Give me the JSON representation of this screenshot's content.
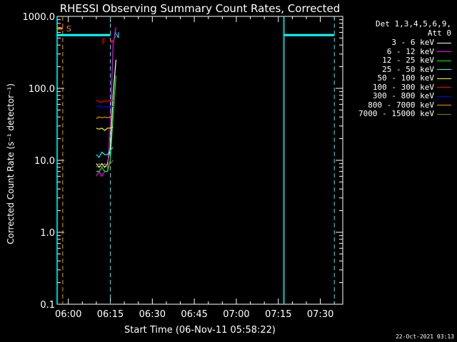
{
  "chart_data": {
    "type": "line",
    "title": "RHESSI Observing Summary Count Rates, Corrected",
    "xlabel": "Start Time (06-Nov-11 05:58:22)",
    "ylabel": "Corrected Count Rate (s⁻¹ detector⁻¹)",
    "yscale": "log",
    "ylim": [
      0.1,
      1000
    ],
    "xlim": [
      "05:56",
      "07:38"
    ],
    "x_ticks": [
      "06:00",
      "06:15",
      "06:30",
      "06:45",
      "07:00",
      "07:15",
      "07:30"
    ],
    "y_ticks": [
      "0.1",
      "1.0",
      "10.0",
      "100.0",
      "1000.0"
    ],
    "background": "#000000",
    "legend": {
      "header": "Det 1,3,4,5,6,9,\nAtt 0",
      "placement": "right"
    },
    "series": [
      {
        "name": "3 - 6 keV",
        "color": "#ffffff",
        "x": [
          "06:10",
          "06:11",
          "06:12",
          "06:13",
          "06:14",
          "06:15",
          "06:16",
          "06:17"
        ],
        "y": [
          9,
          8,
          9,
          8,
          9,
          15,
          80,
          250
        ]
      },
      {
        "name": "6 - 12 keV",
        "color": "#ff00ff",
        "x": [
          "06:10",
          "06:11",
          "06:12",
          "06:13",
          "06:14",
          "06:15",
          "06:16",
          "06:17"
        ],
        "y": [
          6,
          7,
          6,
          7,
          7,
          30,
          400,
          700
        ]
      },
      {
        "name": "12 - 25 keV",
        "color": "#00ff00",
        "x": [
          "06:10",
          "06:11",
          "06:12",
          "06:13",
          "06:14",
          "06:15",
          "06:16",
          "06:17"
        ],
        "y": [
          7,
          7,
          8,
          7,
          7,
          10,
          40,
          150
        ]
      },
      {
        "name": "25 - 50 keV",
        "color": "#00ffff",
        "x": [
          "06:10",
          "06:11",
          "06:12",
          "06:13",
          "06:14",
          "06:15",
          "06:16"
        ],
        "y": [
          12,
          11,
          13,
          12,
          12,
          14,
          15
        ]
      },
      {
        "name": "50 - 100 keV",
        "color": "#ffff00",
        "x": [
          "06:10",
          "06:11",
          "06:12",
          "06:13",
          "06:14",
          "06:15",
          "06:16"
        ],
        "y": [
          28,
          27,
          28,
          26,
          28,
          28,
          29
        ]
      },
      {
        "name": "100 - 300 keV",
        "color": "#ff0000",
        "x": [
          "06:10",
          "06:11",
          "06:12",
          "06:13",
          "06:14",
          "06:15",
          "06:16"
        ],
        "y": [
          68,
          66,
          64,
          67,
          66,
          68,
          68
        ]
      },
      {
        "name": "300 - 800 keV",
        "color": "#0000ff",
        "x": [
          "06:10",
          "06:11",
          "06:12",
          "06:13",
          "06:14",
          "06:15",
          "06:16"
        ],
        "y": [
          55,
          57,
          54,
          56,
          55,
          57,
          56
        ]
      },
      {
        "name": "800 - 7000 keV",
        "color": "#ff8c00",
        "x": [
          "06:10",
          "06:11",
          "06:12",
          "06:13",
          "06:14",
          "06:15",
          "06:16"
        ],
        "y": [
          38,
          40,
          39,
          40,
          39,
          40,
          40
        ]
      },
      {
        "name": "7000 - 15000 keV",
        "color": "#808000",
        "x": [
          "06:10",
          "06:11",
          "06:12",
          "06:13",
          "06:14",
          "06:15",
          "06:16"
        ],
        "y": [
          8,
          9,
          8,
          9,
          8,
          9,
          10
        ]
      }
    ],
    "annotations": [
      {
        "text": "S",
        "color": "#ff8c00"
      },
      {
        "text": "F",
        "color": "#ff0000"
      },
      {
        "text": "N",
        "color": "#00ffff"
      }
    ]
  },
  "timestamp": "22-Oct-2021 03:13"
}
